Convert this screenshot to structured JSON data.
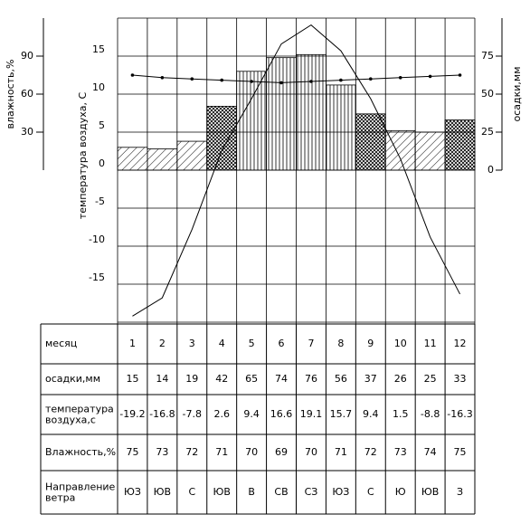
{
  "chart_data": {
    "type": "climate",
    "ylabel": "температура воздуха, С",
    "y2label": "осадки,мм",
    "y3label": "влажность,%",
    "categories": [
      "1",
      "2",
      "3",
      "4",
      "5",
      "6",
      "7",
      "8",
      "9",
      "10",
      "11",
      "12"
    ],
    "ylim": [
      -20,
      20
    ],
    "yticks": [
      -15,
      -10,
      -5,
      0,
      5,
      10,
      15
    ],
    "y2lim": [
      0,
      100
    ],
    "y2ticks": [
      0,
      25,
      50,
      75
    ],
    "y3lim": [
      0,
      120
    ],
    "y3ticks": [
      30,
      60,
      90
    ],
    "series": [
      {
        "name": "осадки,мм",
        "type": "bar",
        "axis": "y2",
        "color": "#000000",
        "values": [
          15,
          14,
          19,
          42,
          65,
          74,
          76,
          56,
          37,
          26,
          25,
          33
        ]
      },
      {
        "name": "температура воздуха,с",
        "type": "line",
        "color": "#000000",
        "values": [
          -19.2,
          -16.8,
          -7.8,
          2.6,
          9.4,
          16.6,
          19.1,
          15.7,
          9.4,
          1.5,
          -8.8,
          -16.3
        ]
      },
      {
        "name": "Влажность,%",
        "type": "line",
        "axis": "y3",
        "color": "#000000",
        "values": [
          75,
          73,
          72,
          71,
          70,
          69,
          70,
          71,
          72,
          73,
          74,
          75
        ]
      }
    ]
  },
  "table": {
    "month_label": "месяц",
    "wind_label": "Направление ветра",
    "wind": [
      "ЮЗ",
      "ЮВ",
      "С",
      "ЮВ",
      "В",
      "СВ",
      "СЗ",
      "ЮЗ",
      "С",
      "Ю",
      "ЮВ",
      "З"
    ]
  }
}
